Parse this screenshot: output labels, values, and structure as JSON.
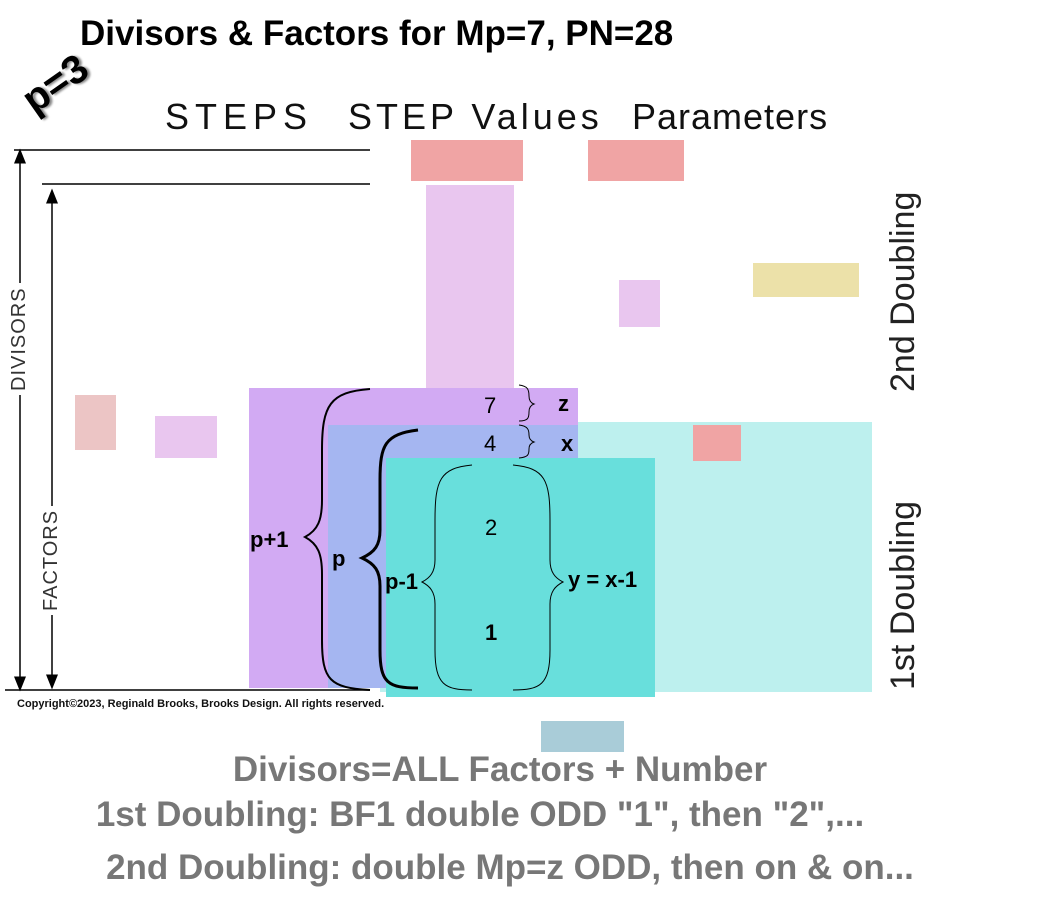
{
  "title": "Divisors & Factors for Mp=7, PN=28",
  "p_label": "p=3",
  "headers": {
    "steps": "STEPS",
    "step_values": "STEP Values",
    "parameters": "Parameters"
  },
  "axis_labels": {
    "divisors": "DIVISORS",
    "factors": "FACTORS"
  },
  "doubling": {
    "second": "2nd Doubling",
    "first": "1st Doubling"
  },
  "values": {
    "v7": "7",
    "v4": "4",
    "v2": "2",
    "v1": "1"
  },
  "params": {
    "z": "z",
    "x": "x",
    "y": "y = x-1",
    "p_plus_1": "p+1",
    "p": "p",
    "p_minus_1": "p-1"
  },
  "copyright": "Copyright©2023, Reginald Brooks, Brooks Design. All rights reserved.",
  "footer": [
    "Divisors=ALL Factors + Number",
    "1st Doubling: BF1 double ODD \"1\", then \"2\",...",
    "2nd Doubling: double Mp=z ODD, then on & on..."
  ],
  "colors": {
    "pink": "#f0a4a4",
    "lilac": "#e9c6ef",
    "yellow": "#ece1a9",
    "purple": "#d2aaf3",
    "blue": "#a5b6f1",
    "teal": "#68dfdc",
    "cyan": "#bdf0ee"
  }
}
